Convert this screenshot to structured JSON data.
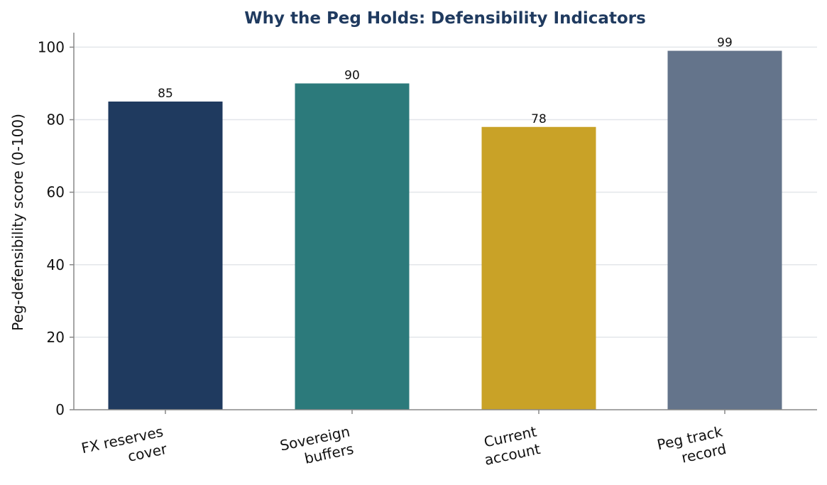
{
  "chart_data": {
    "type": "bar",
    "title": "Why the Peg Holds: Defensibility Indicators",
    "xlabel": "",
    "ylabel": "Peg-defensibility score (0-100)",
    "categories": [
      "FX reserves cover",
      "Sovereign buffers",
      "Current account",
      "Peg track record"
    ],
    "category_lines": [
      [
        "FX reserves",
        "cover"
      ],
      [
        "Sovereign",
        "buffers"
      ],
      [
        "Current",
        "account"
      ],
      [
        "Peg track",
        "record"
      ]
    ],
    "values": [
      85,
      90,
      78,
      99
    ],
    "value_labels": [
      "85",
      "90",
      "78",
      "99"
    ],
    "colors": [
      "#1f3a5f",
      "#2c7a7b",
      "#c9a227",
      "#64748b"
    ],
    "title_color": "#1f3a5f",
    "ylim": [
      0,
      104
    ],
    "yticks": [
      0,
      20,
      40,
      60,
      80,
      100
    ],
    "ytick_labels": [
      "0",
      "20",
      "40",
      "60",
      "80",
      "100"
    ],
    "grid": "y",
    "grid_color": "#e3e6ea",
    "axis_color": "#888888",
    "legend": "none"
  }
}
